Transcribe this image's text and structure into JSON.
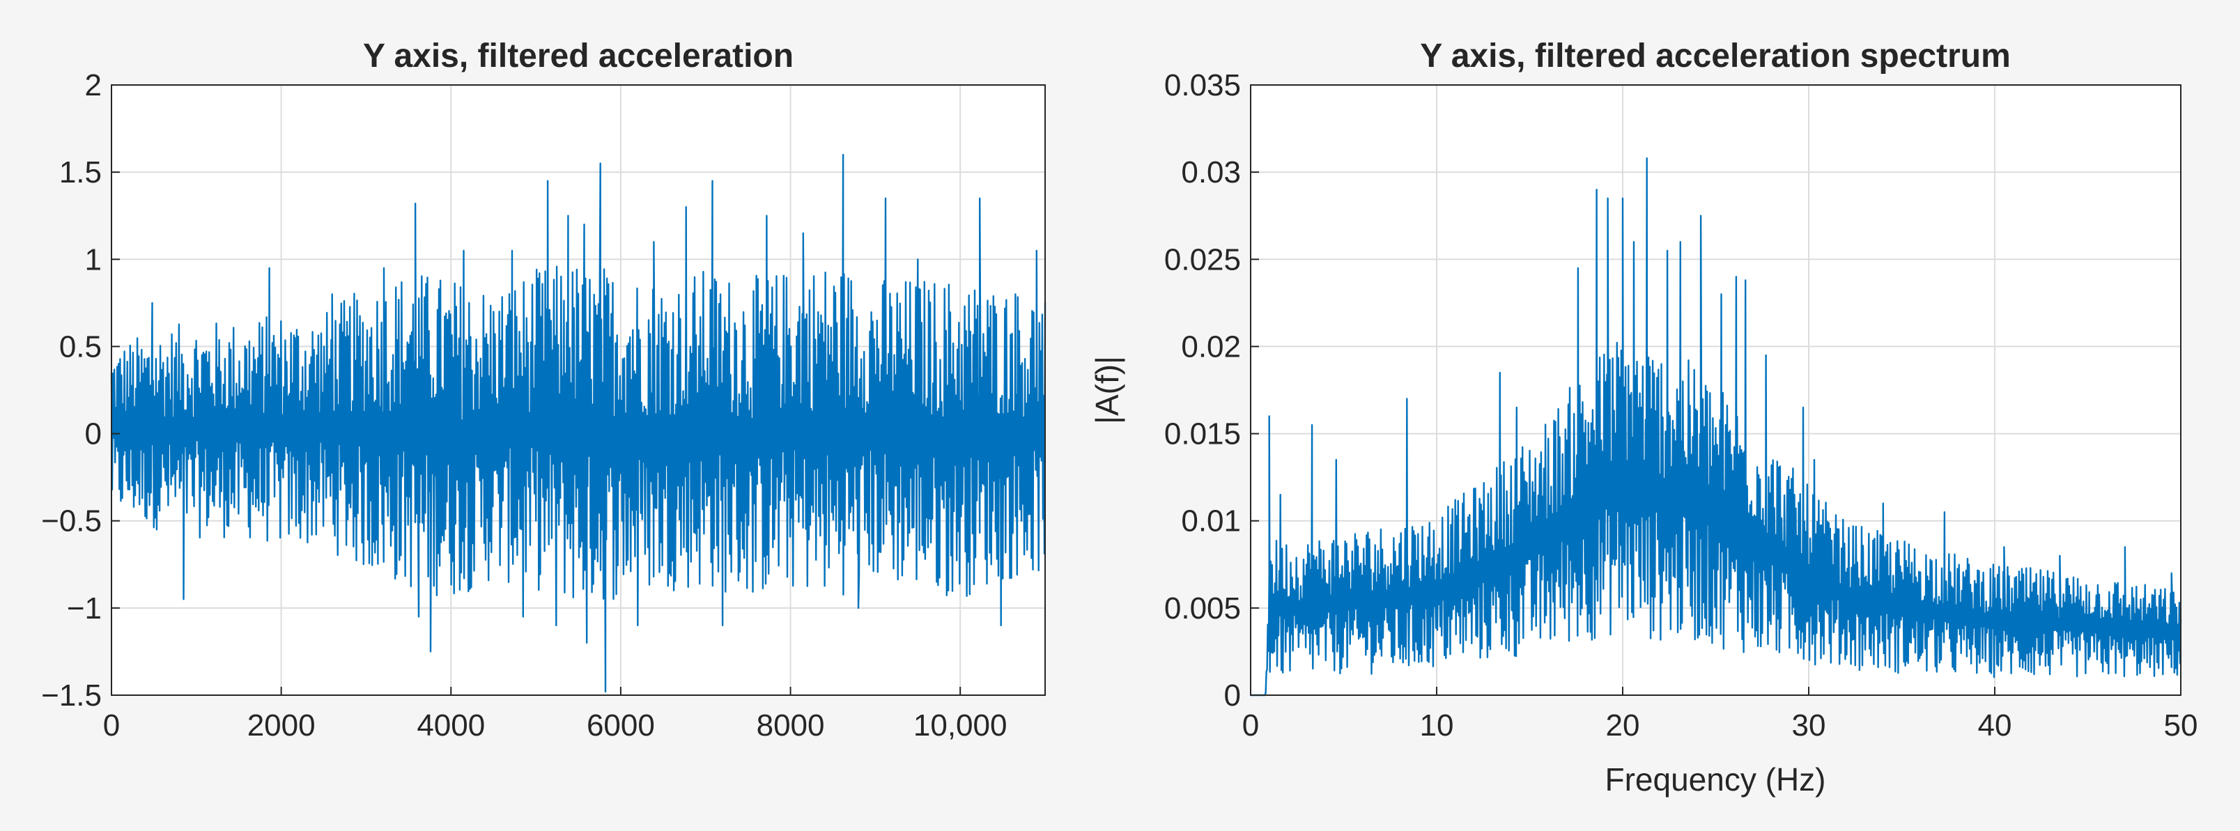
{
  "figure": {
    "background": "#f5f5f5",
    "line_color": "#0072bd",
    "axes_bg": "#ffffff",
    "grid_color": "#dcdcdc"
  },
  "chart_data": [
    {
      "type": "line",
      "title": "Y axis, filtered acceleration",
      "xlabel": "",
      "ylabel": "",
      "xlim": [
        0,
        11000
      ],
      "ylim": [
        -1.5,
        2
      ],
      "grid": true,
      "xticks": [
        0,
        2000,
        4000,
        6000,
        8000,
        10000
      ],
      "xtick_labels": [
        "0",
        "2000",
        "4000",
        "6000",
        "8000",
        "10,000"
      ],
      "yticks": [
        -1.5,
        -1,
        -0.5,
        0,
        0.5,
        1,
        1.5,
        2
      ],
      "ytick_labels": [
        "−1.5",
        "−1",
        "−0.5",
        "0",
        "0.5",
        "1",
        "1.5",
        "2"
      ],
      "series": [
        {
          "envelope": {
            "x": [
              0,
              500,
              1000,
              1500,
              2000,
              2500,
              3000,
              3500,
              4000,
              4500,
              5000,
              5500,
              6000,
              6500,
              7000,
              7500,
              8000,
              8500,
              9000,
              9500,
              10000,
              10500,
              11000
            ],
            "upper": [
              0.5,
              0.6,
              0.65,
              0.65,
              0.7,
              0.7,
              0.85,
              0.95,
              0.9,
              0.85,
              0.95,
              1.0,
              0.95,
              0.9,
              0.95,
              0.9,
              0.95,
              1.0,
              0.9,
              0.9,
              0.9,
              0.85,
              0.8
            ],
            "lower": [
              -0.45,
              -0.55,
              -0.6,
              -0.6,
              -0.65,
              -0.65,
              -0.8,
              -0.9,
              -0.95,
              -0.85,
              -0.9,
              -1.0,
              -0.95,
              -0.9,
              -0.9,
              -0.95,
              -0.9,
              -0.95,
              -0.85,
              -0.9,
              -0.95,
              -0.85,
              -0.8
            ]
          },
          "peaks": [
            [
              220,
              0.5
            ],
            [
              480,
              0.75
            ],
            [
              850,
              -0.95
            ],
            [
              1860,
              0.95
            ],
            [
              2160,
              0.55
            ],
            [
              2600,
              0.8
            ],
            [
              3210,
              0.95
            ],
            [
              3580,
              1.32
            ],
            [
              3620,
              -1.05
            ],
            [
              3760,
              -1.25
            ],
            [
              4150,
              1.05
            ],
            [
              4720,
              1.05
            ],
            [
              4850,
              -1.05
            ],
            [
              5140,
              1.45
            ],
            [
              5240,
              -1.1
            ],
            [
              5380,
              1.25
            ],
            [
              5570,
              1.2
            ],
            [
              5760,
              1.55
            ],
            [
              5820,
              -1.48
            ],
            [
              5600,
              -1.2
            ],
            [
              6200,
              -1.1
            ],
            [
              6390,
              1.1
            ],
            [
              6770,
              1.3
            ],
            [
              7080,
              1.45
            ],
            [
              7200,
              -1.1
            ],
            [
              7720,
              1.25
            ],
            [
              8150,
              1.15
            ],
            [
              8620,
              1.6
            ],
            [
              8800,
              -1.0
            ],
            [
              9120,
              1.35
            ],
            [
              9500,
              1.0
            ],
            [
              9860,
              -0.9
            ],
            [
              10230,
              1.35
            ],
            [
              10480,
              -1.1
            ],
            [
              10650,
              0.8
            ],
            [
              10900,
              1.05
            ]
          ]
        }
      ]
    },
    {
      "type": "line",
      "title": "Y axis, filtered acceleration spectrum",
      "xlabel": "Frequency (Hz)",
      "ylabel": "|A(f)|",
      "xlim": [
        0,
        50
      ],
      "ylim": [
        0,
        0.035
      ],
      "grid": true,
      "xticks": [
        0,
        10,
        20,
        30,
        40,
        50
      ],
      "xtick_labels": [
        "0",
        "10",
        "20",
        "30",
        "40",
        "50"
      ],
      "yticks": [
        0,
        0.005,
        0.01,
        0.015,
        0.02,
        0.025,
        0.03,
        0.035
      ],
      "ytick_labels": [
        "0",
        "0.005",
        "0.01",
        "0.015",
        "0.02",
        "0.025",
        "0.03",
        "0.035"
      ],
      "series": [
        {
          "envelope": {
            "x": [
              0,
              0.8,
              1,
              3,
              5,
              8,
              10,
              12,
              14,
              16,
              18,
              20,
              22,
              24,
              26,
              28,
              30,
              32,
              35,
              40,
              45,
              50
            ],
            "upper": [
              0,
              0,
              0.009,
              0.009,
              0.0095,
              0.01,
              0.0105,
              0.012,
              0.014,
              0.016,
              0.019,
              0.021,
              0.02,
              0.019,
              0.017,
              0.0145,
              0.012,
              0.01,
              0.009,
              0.0075,
              0.007,
              0.006
            ],
            "lower": [
              0,
              0,
              0.001,
              0.001,
              0.0012,
              0.0012,
              0.0015,
              0.0018,
              0.002,
              0.0025,
              0.003,
              0.0035,
              0.003,
              0.003,
              0.0025,
              0.002,
              0.0018,
              0.0015,
              0.0012,
              0.001,
              0.001,
              0.001
            ]
          },
          "peaks": [
            [
              1.0,
              0.016
            ],
            [
              1.6,
              0.0115
            ],
            [
              3.3,
              0.0155
            ],
            [
              4.6,
              0.0135
            ],
            [
              8.4,
              0.017
            ],
            [
              11.4,
              0.011
            ],
            [
              13.4,
              0.0185
            ],
            [
              14.3,
              0.0165
            ],
            [
              17.6,
              0.0245
            ],
            [
              18.6,
              0.029
            ],
            [
              19.2,
              0.0285
            ],
            [
              20.0,
              0.0285
            ],
            [
              20.6,
              0.026
            ],
            [
              21.3,
              0.0308
            ],
            [
              22.4,
              0.0255
            ],
            [
              23.1,
              0.026
            ],
            [
              24.2,
              0.0275
            ],
            [
              25.3,
              0.023
            ],
            [
              26.1,
              0.024
            ],
            [
              26.6,
              0.0238
            ],
            [
              27.7,
              0.0195
            ],
            [
              29.7,
              0.0165
            ],
            [
              30.3,
              0.0135
            ],
            [
              34.0,
              0.011
            ],
            [
              37.3,
              0.0105
            ],
            [
              40.5,
              0.0085
            ],
            [
              43.5,
              0.008
            ],
            [
              47.0,
              0.0085
            ],
            [
              49.5,
              0.007
            ]
          ]
        }
      ]
    }
  ]
}
